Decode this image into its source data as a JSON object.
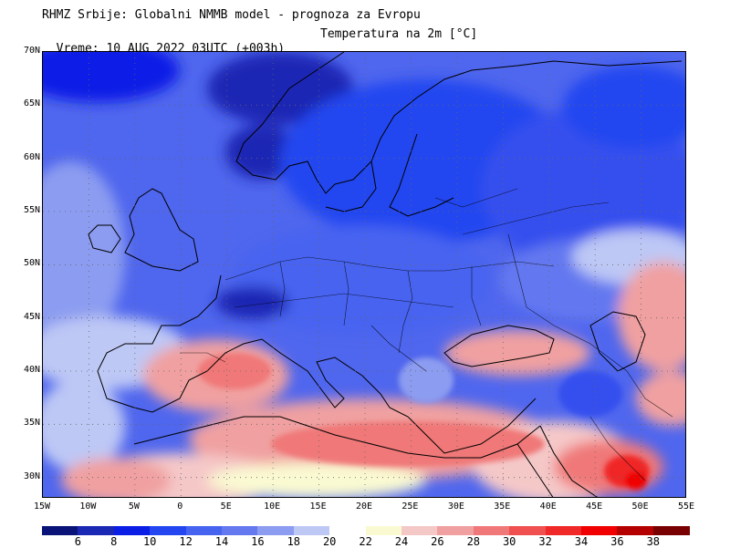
{
  "header": {
    "title": "RHMZ Srbije: Globalni NMMB model - prognoza za Evropu",
    "valid_time": "Vreme: 10 AUG 2022 03UTC (+003h)",
    "field": "Temperatura na 2m [°C]"
  },
  "map": {
    "lon_range": [
      -15,
      55
    ],
    "lat_range": [
      28,
      70
    ],
    "lat_ticks": [
      "70N",
      "65N",
      "60N",
      "55N",
      "50N",
      "45N",
      "40N",
      "35N",
      "30N"
    ],
    "lon_ticks": [
      "15W",
      "10W",
      "5W",
      "0",
      "5E",
      "10E",
      "15E",
      "20E",
      "25E",
      "30E",
      "35E",
      "40E",
      "45E",
      "50E",
      "55E"
    ]
  },
  "legend": {
    "labels": [
      "6",
      "8",
      "10",
      "12",
      "14",
      "16",
      "18",
      "20",
      "22",
      "24",
      "26",
      "28",
      "30",
      "32",
      "34",
      "36",
      "38"
    ],
    "colors": [
      "#0a1478",
      "#1b28b4",
      "#0a1ee6",
      "#2346f0",
      "#4664f0",
      "#6478f0",
      "#8c9cf0",
      "#bec8f5",
      "#ffffff",
      "#fafad2",
      "#f5c8c8",
      "#f0a0a0",
      "#f07878",
      "#f05050",
      "#f02828",
      "#f00000",
      "#b40000",
      "#780000"
    ]
  }
}
